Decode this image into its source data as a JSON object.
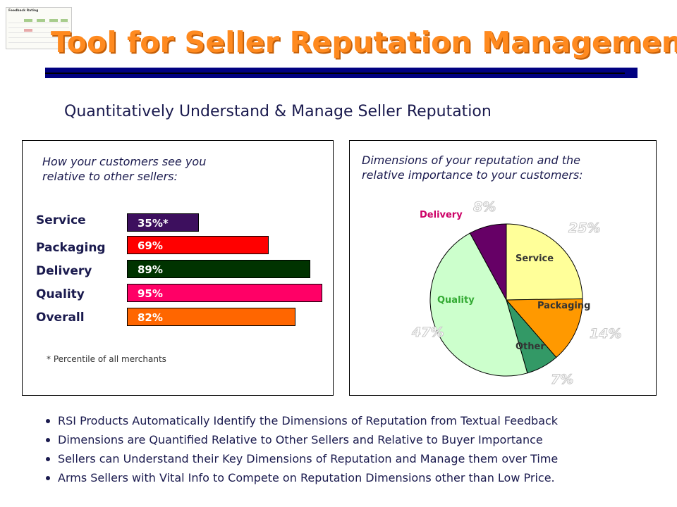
{
  "slide": {
    "title": "Tool for Seller Reputation Management",
    "subtitle": "Quantitatively Understand & Manage Seller Reputation"
  },
  "thumbnail": {
    "title": "Feedback Rating"
  },
  "left_panel": {
    "caption_line1": "How your customers see you",
    "caption_line2": "relative to other sellers:",
    "footnote": "* Percentile of all merchants"
  },
  "right_panel": {
    "caption_line1": "Dimensions of your reputation and the",
    "caption_line2": "relative importance to your customers:"
  },
  "chart_data": [
    {
      "type": "bar",
      "orientation": "horizontal",
      "categories": [
        "Service",
        "Packaging",
        "Delivery",
        "Quality",
        "Overall"
      ],
      "values": [
        35,
        69,
        89,
        95,
        82
      ],
      "value_labels": [
        "35%*",
        "69%",
        "89%",
        "95%",
        "82%"
      ],
      "colors": [
        "#3d0f5e",
        "#ff0000",
        "#003300",
        "#ff0066",
        "#ff6600"
      ],
      "xlim": [
        0,
        100
      ],
      "title": "",
      "grid": false
    },
    {
      "type": "pie",
      "labels": [
        "Service",
        "Packaging",
        "Other",
        "Quality",
        "Delivery"
      ],
      "values": [
        25,
        14,
        7,
        47,
        8
      ],
      "value_labels": [
        "25%",
        "14%",
        "7%",
        "47%",
        "8%"
      ],
      "colors": [
        "#ffff99",
        "#ff9900",
        "#339966",
        "#ccffcc",
        "#660066"
      ],
      "label_colors": [
        "#333333",
        "#333333",
        "#333333",
        "#33aa33",
        "#cc0066"
      ]
    }
  ],
  "bullets": [
    "RSI Products Automatically Identify the Dimensions of Reputation from Textual Feedback",
    "Dimensions are Quantified Relative to Other Sellers and Relative to Buyer Importance",
    "Sellers can Understand their Key Dimensions of Reputation and Manage them over Time",
    "Arms Sellers with Vital Info to Compete on Reputation Dimensions other than Low Price."
  ]
}
